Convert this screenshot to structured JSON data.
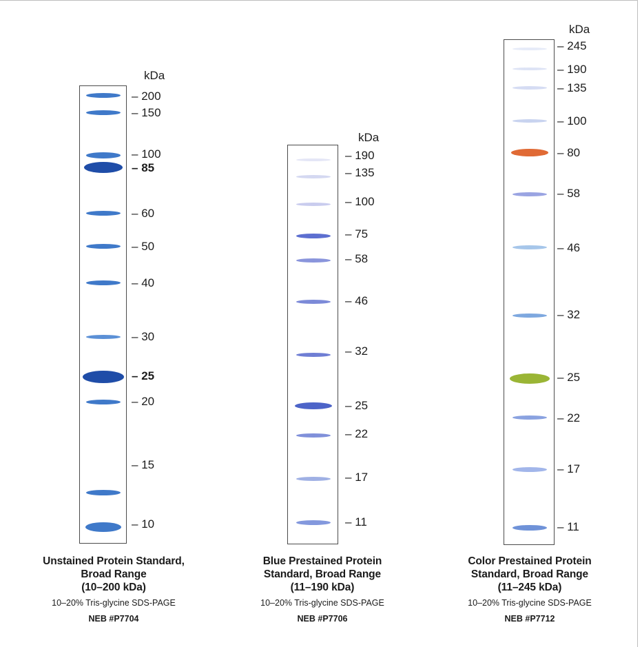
{
  "unit_label": "kDa",
  "ladders": [
    {
      "id": "p7704",
      "marker_labels": [
        "200",
        "150",
        "100",
        "85",
        "60",
        "50",
        "40",
        "30",
        "25",
        "20",
        "15",
        "10"
      ],
      "bold_labels": [
        "85",
        "25"
      ],
      "band_colors": {
        "default": "#3f79c9",
        "strong": "#1f4da8"
      },
      "caption": {
        "title_lines": [
          "Unstained Protein Standard,",
          "Broad Range",
          "(10–200 kDa)"
        ],
        "gel": "10–20% Tris-glycine SDS-PAGE",
        "catalog": "NEB #P7704"
      }
    },
    {
      "id": "p7706",
      "marker_labels": [
        "190",
        "135",
        "100",
        "75",
        "58",
        "46",
        "32",
        "25",
        "22",
        "17",
        "11"
      ],
      "bold_labels": [],
      "band_colors": {
        "default": "#5d6fd0",
        "faint": "#c9ccee"
      },
      "caption": {
        "title_lines": [
          "Blue Prestained Protein",
          "Standard, Broad Range",
          "(11–190 kDa)"
        ],
        "gel": "10–20% Tris-glycine SDS-PAGE",
        "catalog": "NEB #P7706"
      }
    },
    {
      "id": "p7712",
      "marker_labels": [
        "245",
        "190",
        "135",
        "100",
        "80",
        "58",
        "46",
        "32",
        "25",
        "22",
        "17",
        "11"
      ],
      "bold_labels": [],
      "band_colors": {
        "orange": "#e06a35",
        "green": "#9ab535",
        "blue": "#6f92d8",
        "faint": "#c8d3ef"
      },
      "caption": {
        "title_lines": [
          "Color Prestained Protein",
          "Standard, Broad Range",
          "(11–245 kDa)"
        ],
        "gel": "10–20% Tris-glycine SDS-PAGE",
        "catalog": "NEB #P7712"
      }
    }
  ]
}
